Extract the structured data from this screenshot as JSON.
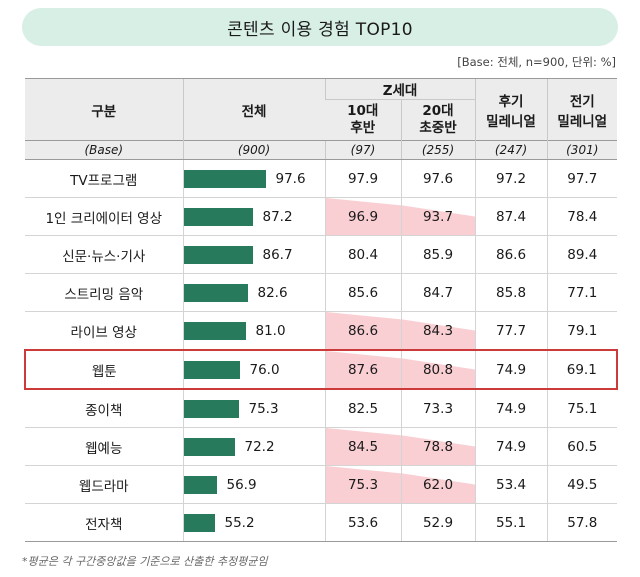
{
  "title": "콘텐츠 이용 경험 TOP10",
  "base_note": "[Base: 전체, n=900, 단위: %]",
  "header": {
    "col_category": "구분",
    "col_total": "전체",
    "group_z": "Z세대",
    "col_10s": "10대\n후반",
    "col_20s": "20대\n초중반",
    "col_late_mil": "후기\n밀레니얼",
    "col_early_mil": "전기\n밀레니얼"
  },
  "base_row": [
    "(Base)",
    "(900)",
    "(97)",
    "(255)",
    "(247)",
    "(301)"
  ],
  "rows": [
    {
      "label": "TV프로그램",
      "total": "97.6",
      "v10": "97.9",
      "v20": "97.6",
      "late": "97.2",
      "early": "97.7"
    },
    {
      "label": "1인 크리에이터 영상",
      "total": "87.2",
      "v10": "96.9",
      "v20": "93.7",
      "late": "87.4",
      "early": "78.4"
    },
    {
      "label": "신문·뉴스·기사",
      "total": "86.7",
      "v10": "80.4",
      "v20": "85.9",
      "late": "86.6",
      "early": "89.4"
    },
    {
      "label": "스트리밍 음악",
      "total": "82.6",
      "v10": "85.6",
      "v20": "84.7",
      "late": "85.8",
      "early": "77.1"
    },
    {
      "label": "라이브 영상",
      "total": "81.0",
      "v10": "86.6",
      "v20": "84.3",
      "late": "77.7",
      "early": "79.1"
    },
    {
      "label": "웹툰",
      "total": "76.0",
      "v10": "87.6",
      "v20": "80.8",
      "late": "74.9",
      "early": "69.1"
    },
    {
      "label": "종이책",
      "total": "75.3",
      "v10": "82.5",
      "v20": "73.3",
      "late": "74.9",
      "early": "75.1"
    },
    {
      "label": "웹예능",
      "total": "72.2",
      "v10": "84.5",
      "v20": "78.8",
      "late": "74.9",
      "early": "60.5"
    },
    {
      "label": "웹드라마",
      "total": "56.9",
      "v10": "75.3",
      "v20": "62.0",
      "late": "53.4",
      "early": "49.5"
    },
    {
      "label": "전자책",
      "total": "55.2",
      "v10": "53.6",
      "v20": "52.9",
      "late": "55.1",
      "early": "57.8"
    }
  ],
  "highlighted_row": 5,
  "z_highlight_rows": [
    1,
    4,
    5,
    7,
    8
  ],
  "colors": {
    "title_bg": "#d8efe6",
    "bar": "#277a5c",
    "highlight_border": "#cc3a3a",
    "z_triangle": "#f9cfd3"
  },
  "footnote": "*평균은 각 구간중앙값을 기준으로 산출한 추정평균임"
}
